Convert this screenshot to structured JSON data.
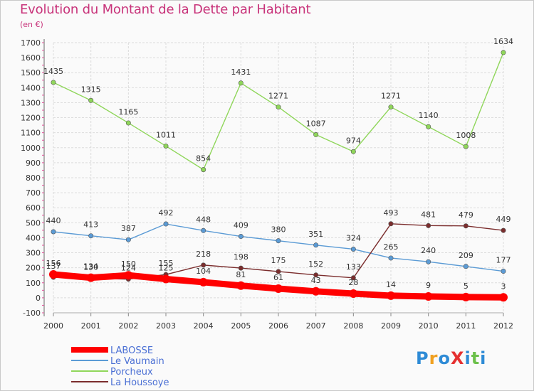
{
  "title": "Evolution du Montant de la Dette par Habitant",
  "subtitle": "(en €)",
  "logo": {
    "text": "ProXiti",
    "colors": [
      "#2e8bd6",
      "#f0a020",
      "#2e8bd6",
      "#e53030",
      "#2e8bd6",
      "#6cc04a",
      "#2e8bd6"
    ]
  },
  "chart_data": {
    "type": "line",
    "title": "Evolution du Montant de la Dette par Habitant",
    "ylabel": "(en €)",
    "x": [
      2000,
      2001,
      2002,
      2003,
      2004,
      2005,
      2006,
      2007,
      2008,
      2009,
      2010,
      2011,
      2012
    ],
    "ylim": [
      -100,
      1700
    ],
    "yticks": [
      -100,
      0,
      100,
      200,
      300,
      400,
      500,
      600,
      700,
      800,
      900,
      1000,
      1100,
      1200,
      1300,
      1400,
      1500,
      1600,
      1700
    ],
    "grid": true,
    "legend": "bottom-left",
    "series": [
      {
        "name": "LABOSSE",
        "color": "#ff0000",
        "values": [
          156,
          134,
          150,
          125,
          104,
          81,
          61,
          43,
          28,
          14,
          9,
          5,
          3
        ]
      },
      {
        "name": "Le Vaumain",
        "color": "#5b9bd5",
        "values": [
          440,
          413,
          387,
          492,
          448,
          409,
          380,
          351,
          324,
          265,
          240,
          209,
          177
        ]
      },
      {
        "name": "Porcheux",
        "color": "#8fd65a",
        "values": [
          1435,
          1315,
          1165,
          1011,
          854,
          1431,
          1271,
          1087,
          974,
          1271,
          1140,
          1008,
          1634
        ]
      },
      {
        "name": "La Houssoye",
        "color": "#7b2d2d",
        "values": [
          137,
          130,
          124,
          155,
          218,
          198,
          175,
          152,
          133,
          493,
          481,
          479,
          449
        ]
      }
    ]
  }
}
